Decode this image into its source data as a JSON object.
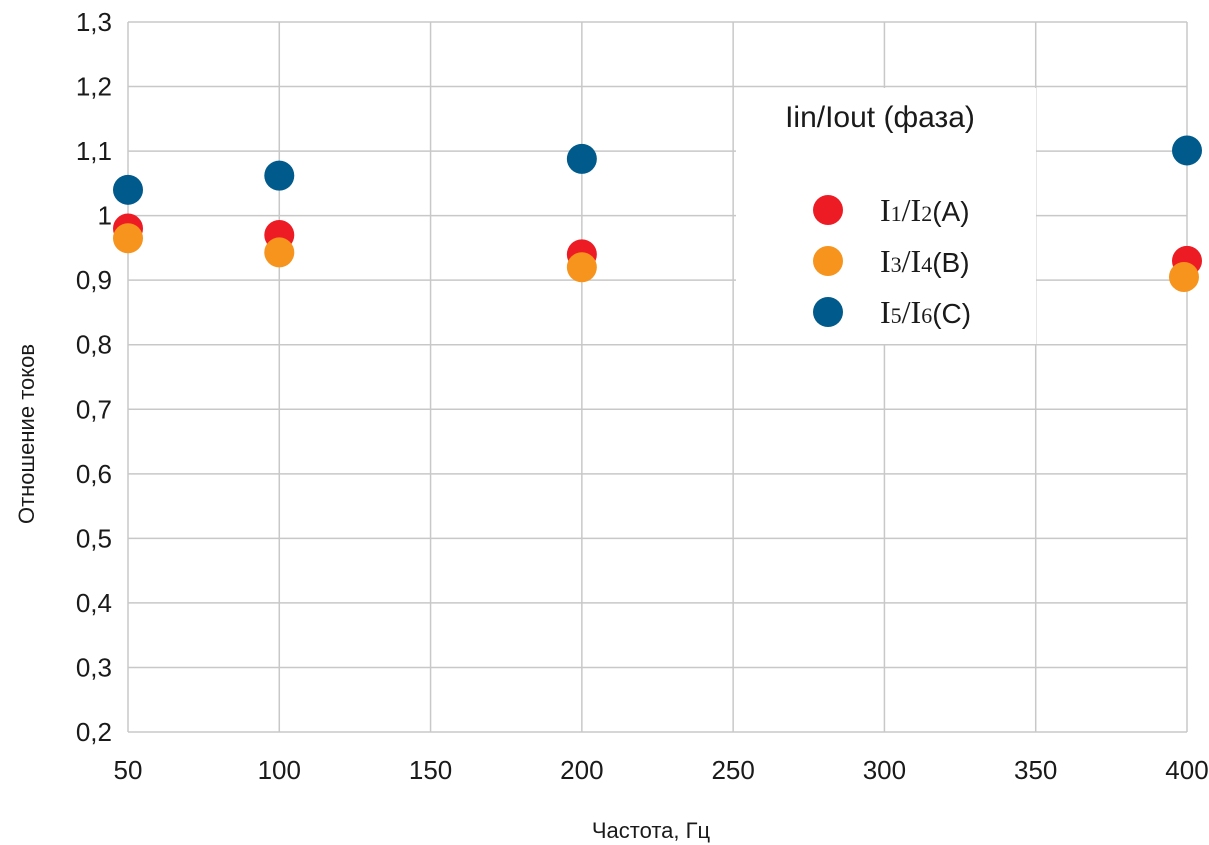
{
  "chart_data": {
    "type": "scatter",
    "title": "",
    "xlabel": "Частота, Гц",
    "ylabel": "Отношение токов",
    "xlim": [
      50,
      400
    ],
    "ylim": [
      0.2,
      1.3
    ],
    "x_ticks": [
      "50",
      "100",
      "150",
      "200",
      "250",
      "300",
      "350",
      "400"
    ],
    "y_ticks": [
      "0,2",
      "0,3",
      "0,4",
      "0,5",
      "0,6",
      "0,7",
      "0,8",
      "0,9",
      "1",
      "1,1",
      "1,2",
      "1,3"
    ],
    "grid": true,
    "legend_position": "top-right",
    "legend_title": "Iin/Iout (фаза)",
    "series": [
      {
        "name": "I1/I2(A)",
        "legend": {
          "a": "I",
          "a_sub": "1",
          "b": "I",
          "b_sub": "2",
          "phase": "(A)"
        },
        "color": "#ed1c24",
        "points": [
          [
            50,
            0.98
          ],
          [
            100,
            0.97
          ],
          [
            200,
            0.94
          ],
          [
            400,
            0.93
          ]
        ]
      },
      {
        "name": "I3/I4(B)",
        "legend": {
          "a": "I",
          "a_sub": "3",
          "b": "I",
          "b_sub": "4",
          "phase": "(B)"
        },
        "color": "#f7941d",
        "points": [
          [
            50,
            0.965
          ],
          [
            100,
            0.943
          ],
          [
            200,
            0.92
          ],
          [
            399,
            0.905
          ]
        ]
      },
      {
        "name": "I5/I6(C)",
        "legend": {
          "a": "I",
          "a_sub": "5",
          "b": "I",
          "b_sub": "6",
          "phase": "(C)"
        },
        "color": "#005a8c",
        "points": [
          [
            50,
            1.04
          ],
          [
            100,
            1.062
          ],
          [
            200,
            1.088
          ],
          [
            400,
            1.101
          ]
        ]
      }
    ]
  }
}
